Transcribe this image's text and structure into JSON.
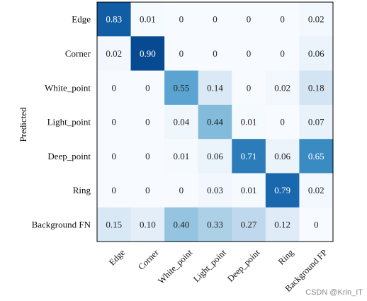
{
  "chart_data": {
    "type": "heatmap",
    "ylabel": "Predicted",
    "xlabel": "",
    "rows": [
      "Edge",
      "Corner",
      "White_point",
      "Light_point",
      "Deep_point",
      "Ring",
      "Background FN"
    ],
    "columns": [
      "Edge",
      "Corner",
      "White_point",
      "Light_point",
      "Deep_point",
      "Ring",
      "Background FP"
    ],
    "values": [
      [
        0.83,
        0.01,
        0,
        0,
        0,
        0,
        0.02
      ],
      [
        0.02,
        0.9,
        0,
        0,
        0,
        0,
        0.06
      ],
      [
        0,
        0,
        0.55,
        0.14,
        0,
        0.02,
        0.18
      ],
      [
        0,
        0,
        0.04,
        0.44,
        0.01,
        0,
        0.07
      ],
      [
        0,
        0,
        0.01,
        0.06,
        0.71,
        0.06,
        0.65
      ],
      [
        0,
        0,
        0,
        0.03,
        0.01,
        0.79,
        0.02
      ],
      [
        0.15,
        0.1,
        0.4,
        0.33,
        0.27,
        0.12,
        0
      ]
    ],
    "value_labels": [
      [
        "0.83",
        "0.01",
        "0",
        "0",
        "0",
        "0",
        "0.02"
      ],
      [
        "0.02",
        "0.90",
        "0",
        "0",
        "0",
        "0",
        "0.06"
      ],
      [
        "0",
        "0",
        "0.55",
        "0.14",
        "0",
        "0.02",
        "0.18"
      ],
      [
        "0",
        "0",
        "0.04",
        "0.44",
        "0.01",
        "0",
        "0.07"
      ],
      [
        "0",
        "0",
        "0.01",
        "0.06",
        "0.71",
        "0.06",
        "0.65"
      ],
      [
        "0",
        "0",
        "0",
        "0.03",
        "0.01",
        "0.79",
        "0.02"
      ],
      [
        "0.15",
        "0.10",
        "0.40",
        "0.33",
        "0.27",
        "0.12",
        "0"
      ]
    ],
    "colormap": "Blues",
    "value_range": [
      0,
      1
    ],
    "colors": {
      "low": "#f7fbff",
      "high": "#08306b",
      "text_dark": "#222222",
      "text_light": "#ffffff"
    }
  },
  "watermark": "CSDN @Krin_IT"
}
